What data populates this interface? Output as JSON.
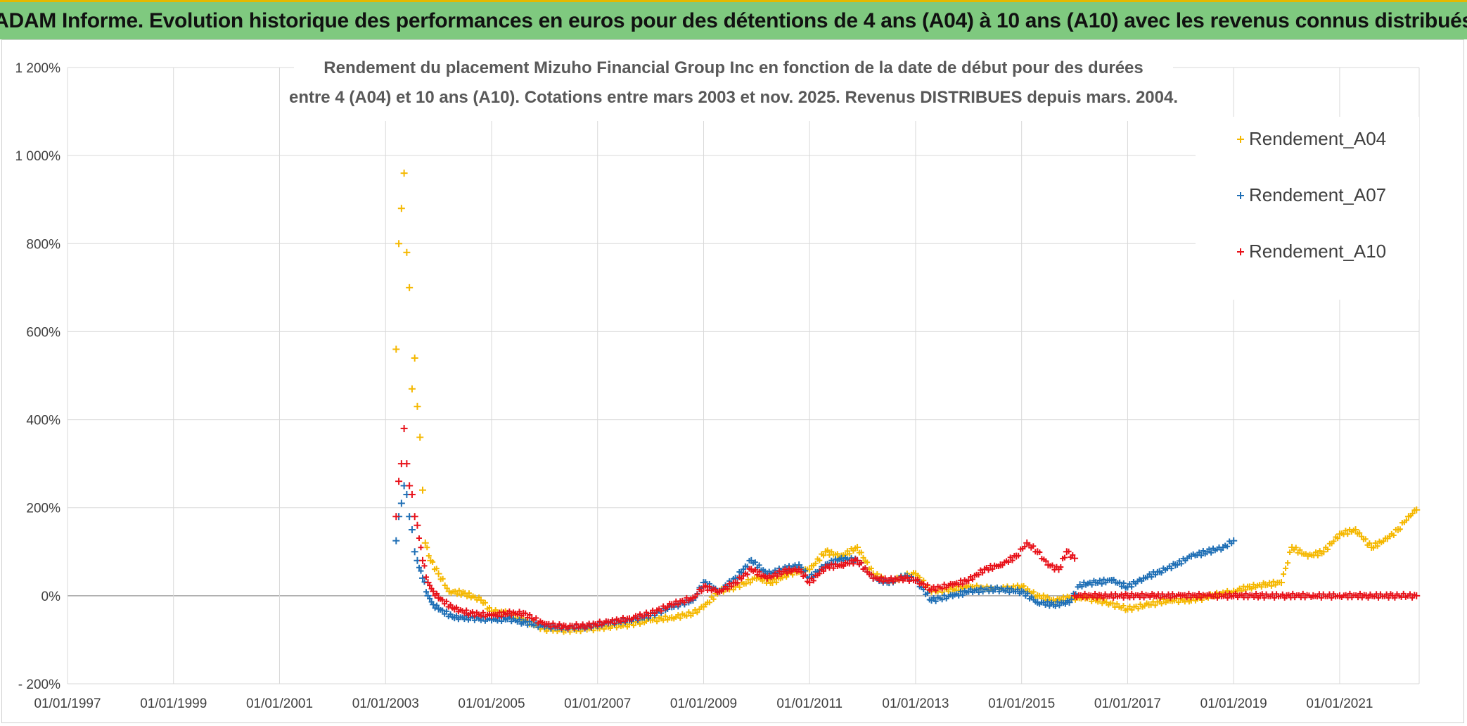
{
  "header": {
    "banner_title": "ADAM Informe. Evolution historique des performances en euros pour des détentions de 4 ans (A04) à 10 ans (A10) avec les revenus connus distribués"
  },
  "colors": {
    "banner_bg": "#7fc97f",
    "a04": "#f5b800",
    "a07": "#1f6fb5",
    "a10": "#e8121a",
    "grid": "#d9d9d9",
    "zero_line": "#a6a6a6"
  },
  "chart_data": {
    "type": "scatter",
    "title_line1": "Rendement du placement Mizuho Financial Group Inc en fonction de la date de début pour des durées",
    "title_line2": "entre 4 (A04) et 10 ans (A10). Cotations entre mars 2003 et nov. 2025. Revenus DISTRIBUES depuis mars. 2004.",
    "xlabel": "",
    "ylabel": "",
    "x_domain": [
      1997.0,
      2022.5
    ],
    "ylim": [
      -200,
      1200
    ],
    "x_ticks": [
      {
        "value": 1997,
        "label": "01/01/1997"
      },
      {
        "value": 1999,
        "label": "01/01/1999"
      },
      {
        "value": 2001,
        "label": "01/01/2001"
      },
      {
        "value": 2003,
        "label": "01/01/2003"
      },
      {
        "value": 2005,
        "label": "01/01/2005"
      },
      {
        "value": 2007,
        "label": "01/01/2007"
      },
      {
        "value": 2009,
        "label": "01/01/2009"
      },
      {
        "value": 2011,
        "label": "01/01/2011"
      },
      {
        "value": 2013,
        "label": "01/01/2013"
      },
      {
        "value": 2015,
        "label": "01/01/2015"
      },
      {
        "value": 2017,
        "label": "01/01/2017"
      },
      {
        "value": 2019,
        "label": "01/01/2019"
      },
      {
        "value": 2021,
        "label": "01/01/2021"
      }
    ],
    "y_ticks": [
      {
        "value": 1200,
        "label": "1 200%"
      },
      {
        "value": 1000,
        "label": "1 000%"
      },
      {
        "value": 800,
        "label": "800%"
      },
      {
        "value": 600,
        "label": "600%"
      },
      {
        "value": 400,
        "label": "400%"
      },
      {
        "value": 200,
        "label": "200%"
      },
      {
        "value": 0,
        "label": "0%"
      },
      {
        "value": -200,
        "label": "- 200%"
      }
    ],
    "legend_position": "top-right",
    "series": [
      {
        "name": "Rendement_A04",
        "color": "#f5b800",
        "points": [
          [
            2003.2,
            560
          ],
          [
            2003.25,
            800
          ],
          [
            2003.3,
            880
          ],
          [
            2003.35,
            960
          ],
          [
            2003.4,
            780
          ],
          [
            2003.45,
            700
          ],
          [
            2003.5,
            470
          ],
          [
            2003.55,
            540
          ],
          [
            2003.6,
            430
          ],
          [
            2003.65,
            360
          ],
          [
            2003.7,
            240
          ],
          [
            2003.75,
            120
          ],
          [
            2003.85,
            80
          ],
          [
            2004.0,
            50
          ],
          [
            2004.2,
            10
          ],
          [
            2004.5,
            5
          ],
          [
            2004.8,
            -10
          ],
          [
            2005.0,
            -35
          ],
          [
            2005.3,
            -40
          ],
          [
            2005.6,
            -55
          ],
          [
            2006.0,
            -75
          ],
          [
            2006.4,
            -78
          ],
          [
            2006.8,
            -76
          ],
          [
            2007.2,
            -70
          ],
          [
            2007.6,
            -65
          ],
          [
            2008.0,
            -55
          ],
          [
            2008.4,
            -50
          ],
          [
            2008.8,
            -40
          ],
          [
            2009.0,
            -25
          ],
          [
            2009.3,
            10
          ],
          [
            2009.6,
            20
          ],
          [
            2010.0,
            40
          ],
          [
            2010.3,
            30
          ],
          [
            2010.6,
            50
          ],
          [
            2011.0,
            60
          ],
          [
            2011.3,
            100
          ],
          [
            2011.6,
            90
          ],
          [
            2011.9,
            110
          ],
          [
            2012.2,
            50
          ],
          [
            2012.5,
            30
          ],
          [
            2012.8,
            45
          ],
          [
            2013.0,
            50
          ],
          [
            2013.3,
            10
          ],
          [
            2013.7,
            15
          ],
          [
            2014.0,
            20
          ],
          [
            2014.5,
            15
          ],
          [
            2015.0,
            20
          ],
          [
            2015.3,
            0
          ],
          [
            2015.6,
            -10
          ],
          [
            2015.9,
            -5
          ],
          [
            2016.2,
            -5
          ],
          [
            2016.6,
            -15
          ],
          [
            2017.0,
            -30
          ],
          [
            2017.4,
            -20
          ],
          [
            2017.8,
            -10
          ],
          [
            2018.2,
            -10
          ],
          [
            2018.6,
            0
          ],
          [
            2019.0,
            10
          ],
          [
            2019.3,
            20
          ],
          [
            2019.6,
            25
          ],
          [
            2019.9,
            30
          ],
          [
            2020.1,
            110
          ],
          [
            2020.4,
            90
          ],
          [
            2020.7,
            100
          ],
          [
            2021.0,
            140
          ],
          [
            2021.3,
            150
          ],
          [
            2021.6,
            110
          ],
          [
            2021.9,
            130
          ],
          [
            2022.1,
            150
          ],
          [
            2022.3,
            180
          ],
          [
            2022.45,
            195
          ]
        ]
      },
      {
        "name": "Rendement_A07",
        "color": "#1f6fb5",
        "points": [
          [
            2003.2,
            125
          ],
          [
            2003.25,
            180
          ],
          [
            2003.3,
            210
          ],
          [
            2003.35,
            250
          ],
          [
            2003.4,
            230
          ],
          [
            2003.45,
            180
          ],
          [
            2003.5,
            150
          ],
          [
            2003.55,
            100
          ],
          [
            2003.6,
            80
          ],
          [
            2003.7,
            40
          ],
          [
            2003.8,
            0
          ],
          [
            2003.9,
            -20
          ],
          [
            2004.0,
            -30
          ],
          [
            2004.3,
            -50
          ],
          [
            2004.6,
            -50
          ],
          [
            2005.0,
            -55
          ],
          [
            2005.3,
            -52
          ],
          [
            2005.6,
            -60
          ],
          [
            2006.0,
            -70
          ],
          [
            2006.4,
            -72
          ],
          [
            2006.8,
            -70
          ],
          [
            2007.2,
            -62
          ],
          [
            2007.6,
            -55
          ],
          [
            2008.0,
            -45
          ],
          [
            2008.4,
            -25
          ],
          [
            2008.8,
            -10
          ],
          [
            2009.0,
            30
          ],
          [
            2009.3,
            10
          ],
          [
            2009.6,
            40
          ],
          [
            2009.9,
            80
          ],
          [
            2010.2,
            50
          ],
          [
            2010.5,
            60
          ],
          [
            2010.8,
            70
          ],
          [
            2011.0,
            40
          ],
          [
            2011.3,
            70
          ],
          [
            2011.6,
            85
          ],
          [
            2011.9,
            80
          ],
          [
            2012.2,
            40
          ],
          [
            2012.5,
            30
          ],
          [
            2012.8,
            45
          ],
          [
            2013.0,
            35
          ],
          [
            2013.3,
            -10
          ],
          [
            2013.7,
            0
          ],
          [
            2014.0,
            10
          ],
          [
            2014.5,
            15
          ],
          [
            2015.0,
            10
          ],
          [
            2015.3,
            -15
          ],
          [
            2015.6,
            -20
          ],
          [
            2015.9,
            -15
          ],
          [
            2016.1,
            25
          ],
          [
            2016.4,
            30
          ],
          [
            2016.7,
            35
          ],
          [
            2017.0,
            20
          ],
          [
            2017.3,
            40
          ],
          [
            2017.6,
            55
          ],
          [
            2017.9,
            70
          ],
          [
            2018.2,
            90
          ],
          [
            2018.5,
            100
          ],
          [
            2018.8,
            110
          ],
          [
            2019.0,
            125
          ]
        ]
      },
      {
        "name": "Rendement_A10",
        "color": "#e8121a",
        "points": [
          [
            2003.2,
            180
          ],
          [
            2003.25,
            260
          ],
          [
            2003.3,
            300
          ],
          [
            2003.35,
            380
          ],
          [
            2003.4,
            300
          ],
          [
            2003.45,
            250
          ],
          [
            2003.5,
            230
          ],
          [
            2003.55,
            180
          ],
          [
            2003.6,
            160
          ],
          [
            2003.7,
            80
          ],
          [
            2003.8,
            30
          ],
          [
            2003.9,
            10
          ],
          [
            2004.0,
            -5
          ],
          [
            2004.3,
            -30
          ],
          [
            2004.6,
            -40
          ],
          [
            2005.0,
            -45
          ],
          [
            2005.3,
            -40
          ],
          [
            2005.6,
            -40
          ],
          [
            2006.0,
            -65
          ],
          [
            2006.4,
            -70
          ],
          [
            2006.8,
            -68
          ],
          [
            2007.2,
            -60
          ],
          [
            2007.6,
            -52
          ],
          [
            2008.0,
            -40
          ],
          [
            2008.4,
            -20
          ],
          [
            2008.8,
            -5
          ],
          [
            2009.0,
            20
          ],
          [
            2009.3,
            10
          ],
          [
            2009.6,
            30
          ],
          [
            2009.9,
            60
          ],
          [
            2010.2,
            40
          ],
          [
            2010.5,
            55
          ],
          [
            2010.8,
            60
          ],
          [
            2011.0,
            30
          ],
          [
            2011.3,
            65
          ],
          [
            2011.6,
            70
          ],
          [
            2011.9,
            80
          ],
          [
            2012.2,
            40
          ],
          [
            2012.5,
            35
          ],
          [
            2012.8,
            40
          ],
          [
            2013.0,
            35
          ],
          [
            2013.3,
            15
          ],
          [
            2013.7,
            25
          ],
          [
            2014.0,
            35
          ],
          [
            2014.3,
            60
          ],
          [
            2014.6,
            70
          ],
          [
            2014.9,
            90
          ],
          [
            2015.1,
            120
          ],
          [
            2015.3,
            100
          ],
          [
            2015.5,
            70
          ],
          [
            2015.7,
            60
          ],
          [
            2015.85,
            100
          ],
          [
            2016.0,
            85
          ],
          [
            2016.0,
            0
          ],
          [
            2016.5,
            0
          ],
          [
            2017.0,
            0
          ],
          [
            2017.5,
            0
          ],
          [
            2018.0,
            0
          ],
          [
            2018.5,
            0
          ],
          [
            2019.0,
            0
          ],
          [
            2019.5,
            0
          ],
          [
            2020.0,
            0
          ],
          [
            2020.5,
            0
          ],
          [
            2021.0,
            0
          ],
          [
            2021.5,
            0
          ],
          [
            2022.0,
            0
          ],
          [
            2022.45,
            0
          ]
        ]
      }
    ]
  }
}
